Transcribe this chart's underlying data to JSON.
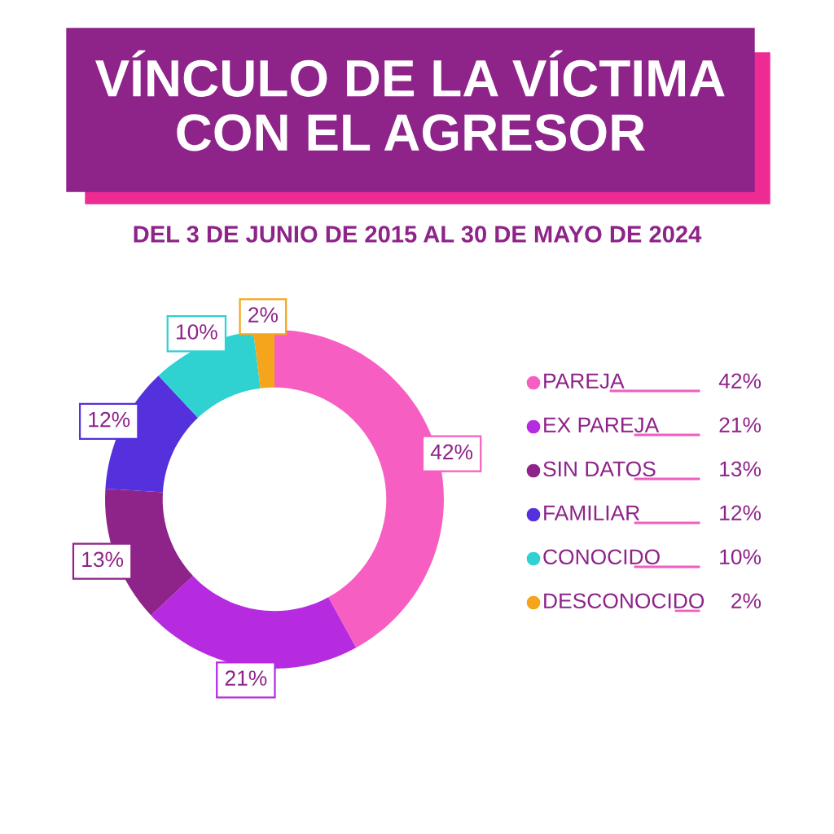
{
  "chart_data": {
    "type": "donut",
    "title": "VÍNCULO DE LA VÍCTIMA\nCON EL AGRESOR",
    "subtitle": "DEL 3 DE JUNIO DE 2015 AL 30 DE MAYO DE 2024",
    "categories": [
      "PAREJA",
      "EX PAREJA",
      "SIN DATOS",
      "FAMILIAR",
      "CONOCIDO",
      "DESCONOCIDO"
    ],
    "values": [
      42,
      21,
      13,
      12,
      10,
      2
    ],
    "value_labels": [
      "42%",
      "21%",
      "13%",
      "12%",
      "10%",
      "2%"
    ],
    "colors": [
      "#f65fc1",
      "#b62ae0",
      "#8e2389",
      "#5530dd",
      "#2fd1d1",
      "#f4a51c"
    ],
    "legend": "right"
  }
}
